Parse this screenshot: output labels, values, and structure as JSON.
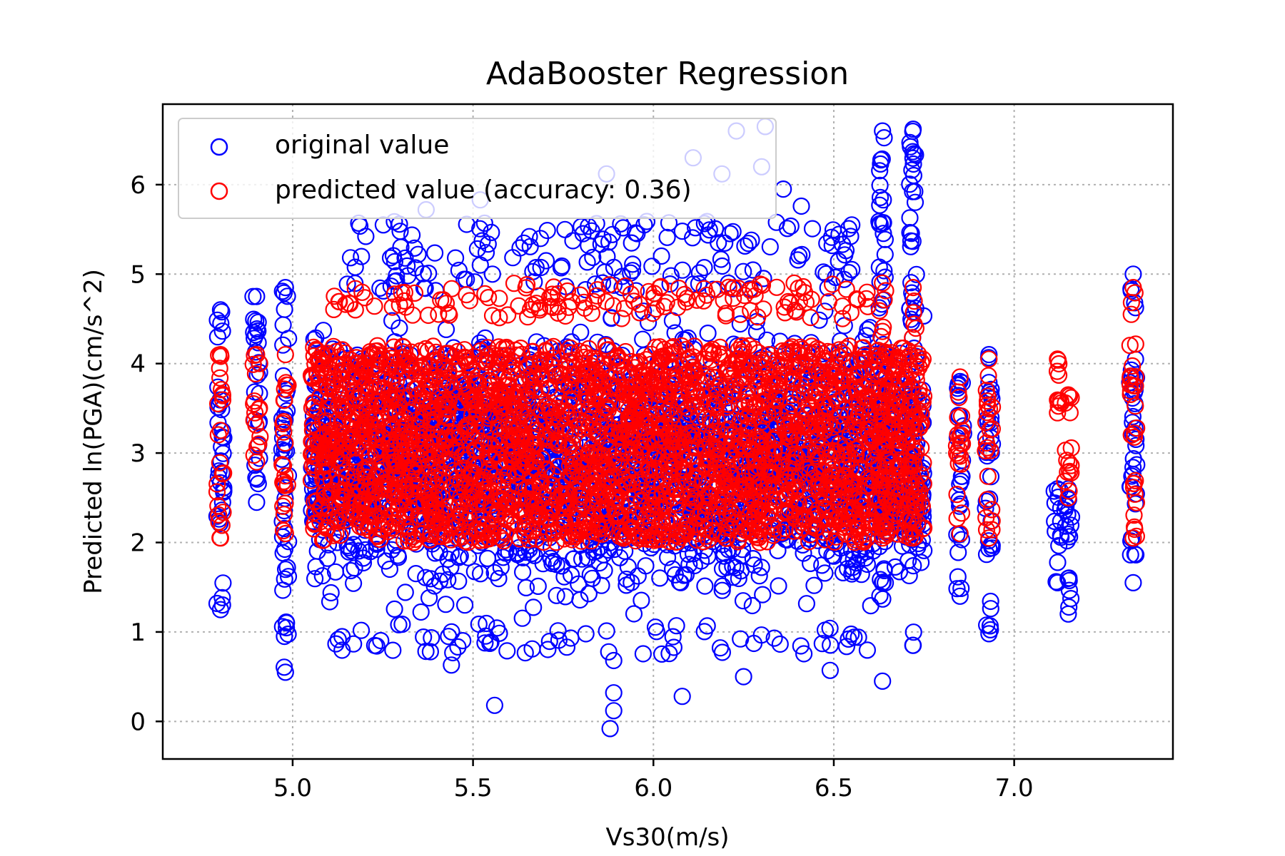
{
  "chart_data": {
    "type": "scatter",
    "title": "AdaBooster Regression",
    "xlabel": "Vs30(m/s)",
    "ylabel": "Predicted ln(PGA)(cm/s^2)",
    "xlim": [
      4.64,
      7.44
    ],
    "ylim": [
      -0.42,
      6.9
    ],
    "xticks": [
      5.0,
      5.5,
      6.0,
      6.5,
      7.0
    ],
    "xtick_labels": [
      "5.0",
      "5.5",
      "6.0",
      "6.5",
      "7.0"
    ],
    "yticks": [
      0,
      1,
      2,
      3,
      4,
      5,
      6
    ],
    "ytick_labels": [
      "0",
      "1",
      "2",
      "3",
      "4",
      "5",
      "6"
    ],
    "grid": true,
    "legend_position": "top-left",
    "series": [
      {
        "name": "original value",
        "color": "#0000ff",
        "marker": "open-circle",
        "columns": [
          {
            "x": 4.8,
            "y_min": 1.25,
            "y_max": 4.6
          },
          {
            "x": 4.9,
            "y_min": 2.45,
            "y_max": 4.75
          },
          {
            "x": 4.98,
            "y_min": 0.55,
            "y_max": 4.85
          },
          {
            "x": 6.635,
            "y_min": 0.45,
            "y_max": 6.6
          },
          {
            "x": 6.72,
            "y_min": 0.85,
            "y_max": 6.62
          },
          {
            "x": 6.85,
            "y_min": 1.4,
            "y_max": 3.8
          },
          {
            "x": 6.93,
            "y_min": 0.98,
            "y_max": 4.1
          },
          {
            "x": 7.12,
            "y_min": 1.55,
            "y_max": 2.6
          },
          {
            "x": 7.15,
            "y_min": 1.2,
            "y_max": 2.6
          },
          {
            "x": 7.33,
            "y_min": 1.55,
            "y_max": 5.0
          }
        ],
        "dense_band": {
          "x_range": [
            5.05,
            6.75
          ],
          "y_range": [
            1.0,
            4.8
          ]
        },
        "outliers": [
          {
            "x": 5.56,
            "y": 0.18
          },
          {
            "x": 5.88,
            "y": -0.08
          },
          {
            "x": 5.89,
            "y": 0.12
          },
          {
            "x": 5.89,
            "y": 0.32
          },
          {
            "x": 5.89,
            "y": 0.68
          },
          {
            "x": 6.08,
            "y": 0.28
          },
          {
            "x": 5.44,
            "y": 0.63
          },
          {
            "x": 6.25,
            "y": 0.5
          },
          {
            "x": 6.49,
            "y": 0.57
          },
          {
            "x": 5.87,
            "y": 6.12
          },
          {
            "x": 6.11,
            "y": 6.3
          },
          {
            "x": 6.23,
            "y": 6.6
          },
          {
            "x": 6.31,
            "y": 6.65
          },
          {
            "x": 6.3,
            "y": 6.2
          },
          {
            "x": 6.36,
            "y": 5.95
          },
          {
            "x": 6.41,
            "y": 5.76
          },
          {
            "x": 5.52,
            "y": 5.83
          },
          {
            "x": 5.37,
            "y": 5.72
          },
          {
            "x": 6.19,
            "y": 6.12
          },
          {
            "x": 6.55,
            "y": 5.55
          }
        ]
      },
      {
        "name": "predicted value (accuracy: 0.36)",
        "color": "#ff0000",
        "marker": "open-circle",
        "columns": [
          {
            "x": 4.8,
            "y_min": 2.05,
            "y_max": 4.1
          },
          {
            "x": 4.9,
            "y_min": 2.9,
            "y_max": 4.1
          },
          {
            "x": 4.98,
            "y_min": 2.1,
            "y_max": 4.1
          },
          {
            "x": 6.635,
            "y_min": 2.05,
            "y_max": 4.9
          },
          {
            "x": 6.72,
            "y_min": 2.05,
            "y_max": 4.85
          },
          {
            "x": 6.85,
            "y_min": 2.1,
            "y_max": 3.85
          },
          {
            "x": 6.93,
            "y_min": 2.05,
            "y_max": 4.05
          },
          {
            "x": 7.12,
            "y_min": 3.45,
            "y_max": 4.05
          },
          {
            "x": 7.15,
            "y_min": 2.5,
            "y_max": 3.65
          },
          {
            "x": 7.33,
            "y_min": 2.05,
            "y_max": 4.85
          }
        ],
        "dense_band": {
          "x_range": [
            5.05,
            6.75
          ],
          "y_range": [
            2.0,
            4.2
          ]
        },
        "upper_band": {
          "x_range": [
            5.1,
            6.6
          ],
          "y_range": [
            4.5,
            4.9
          ]
        }
      }
    ]
  }
}
